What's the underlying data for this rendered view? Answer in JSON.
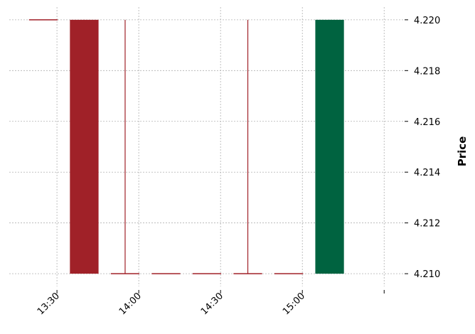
{
  "chart_data": {
    "type": "candlestick",
    "ylabel": "Price",
    "ylim": [
      4.2095,
      4.2205
    ],
    "yticks": [
      "4.210",
      "4.212",
      "4.214",
      "4.216",
      "4.218",
      "4.220"
    ],
    "ytick_values": [
      4.21,
      4.212,
      4.214,
      4.216,
      4.218,
      4.22
    ],
    "xticks": [
      "13:30",
      "14:00",
      "14:30",
      "15:00",
      ""
    ],
    "xtick_minutes": [
      810,
      840,
      870,
      900,
      930
    ],
    "xlim_minutes": [
      792.5,
      937.5
    ],
    "grid": true,
    "colors": {
      "up": "#006340",
      "down": "#a02128"
    },
    "candles": [
      {
        "time": "13:25",
        "minute": 805,
        "open": 4.22,
        "high": 4.22,
        "low": 4.22,
        "close": 4.22,
        "direction": "down"
      },
      {
        "time": "13:40",
        "minute": 820,
        "open": 4.22,
        "high": 4.22,
        "low": 4.21,
        "close": 4.21,
        "direction": "down"
      },
      {
        "time": "13:55",
        "minute": 835,
        "open": 4.21,
        "high": 4.22,
        "low": 4.21,
        "close": 4.21,
        "direction": "down"
      },
      {
        "time": "14:10",
        "minute": 850,
        "open": 4.21,
        "high": 4.21,
        "low": 4.21,
        "close": 4.21,
        "direction": "down"
      },
      {
        "time": "14:25",
        "minute": 865,
        "open": 4.21,
        "high": 4.21,
        "low": 4.21,
        "close": 4.21,
        "direction": "down"
      },
      {
        "time": "14:40",
        "minute": 880,
        "open": 4.21,
        "high": 4.22,
        "low": 4.21,
        "close": 4.21,
        "direction": "down"
      },
      {
        "time": "14:55",
        "minute": 895,
        "open": 4.21,
        "high": 4.21,
        "low": 4.21,
        "close": 4.21,
        "direction": "down"
      },
      {
        "time": "15:10",
        "minute": 910,
        "open": 4.21,
        "high": 4.22,
        "low": 4.21,
        "close": 4.22,
        "direction": "up"
      }
    ]
  }
}
